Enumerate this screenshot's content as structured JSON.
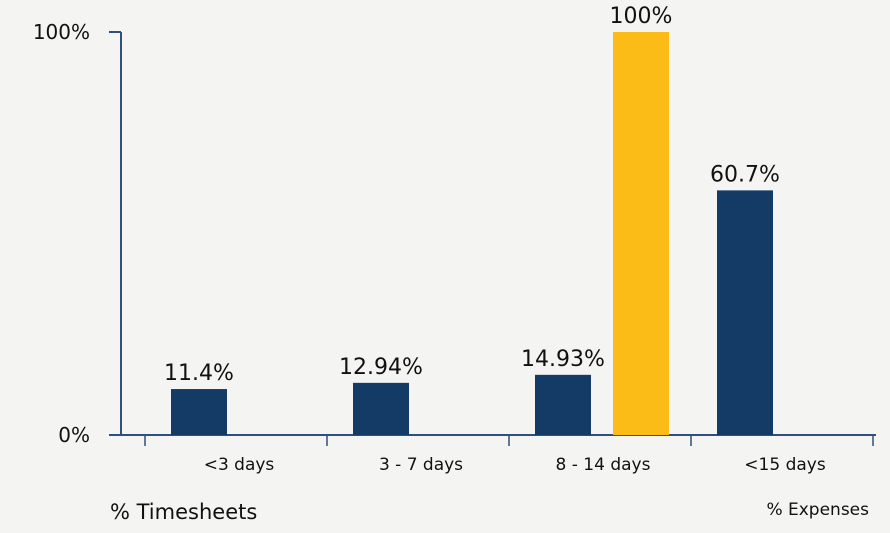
{
  "chart_data": {
    "type": "bar",
    "categories": [
      "<3 days",
      "3 - 7 days",
      "8 - 14 days",
      "<15 days"
    ],
    "series": [
      {
        "name": "% Timesheets",
        "color": "#143a66",
        "values": [
          11.4,
          12.94,
          14.93,
          60.7
        ],
        "labels": [
          "11.4%",
          "12.94%",
          "14.93%",
          "60.7%"
        ]
      },
      {
        "name": "% Expenses",
        "color": "#fbbc17",
        "values": [
          null,
          null,
          100,
          null
        ],
        "labels": [
          "",
          "",
          "100%",
          ""
        ]
      }
    ],
    "ylim": [
      0,
      100
    ],
    "yticks": [
      {
        "value": 0,
        "label": "0%"
      },
      {
        "value": 100,
        "label": "100%"
      }
    ],
    "grid": false,
    "legend": "bottom"
  }
}
